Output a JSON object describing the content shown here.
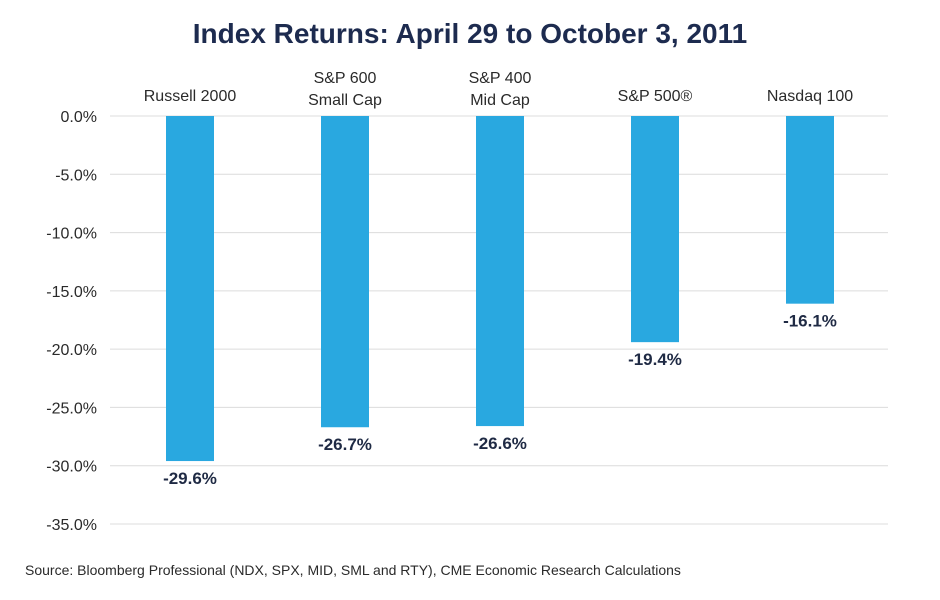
{
  "chart_data": {
    "type": "bar",
    "title": "Index Returns: April 29 to October 3, 2011",
    "categories": [
      [
        "Russell 2000"
      ],
      [
        "S&P 600",
        "Small Cap"
      ],
      [
        "S&P 400",
        "Mid Cap"
      ],
      [
        "S&P 500®"
      ],
      [
        "Nasdaq 100"
      ]
    ],
    "values": [
      -29.6,
      -26.7,
      -26.6,
      -19.4,
      -16.1
    ],
    "data_labels": [
      "-29.6%",
      "-26.7%",
      "-26.6%",
      "-19.4%",
      "-16.1%"
    ],
    "ylim": [
      -35,
      0
    ],
    "yticks": [
      0,
      -5,
      -10,
      -15,
      -20,
      -25,
      -30,
      -35
    ],
    "ytick_labels": [
      "0.0%",
      "-5.0%",
      "-10.0%",
      "-15.0%",
      "-20.0%",
      "-25.0%",
      "-30.0%",
      "-35.0%"
    ],
    "xlabel": "",
    "ylabel": "",
    "grid": true,
    "legend": "none",
    "bar_color": "#29a8e0",
    "grid_color": "#dcdcdc"
  },
  "source": "Source: Bloomberg Professional (NDX, SPX, MID, SML and RTY), CME Economic Research Calculations"
}
